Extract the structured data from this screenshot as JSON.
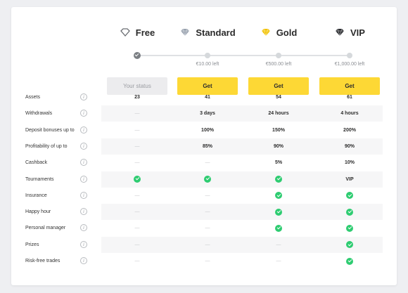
{
  "colors": {
    "accent": "#fdd835",
    "check": "#2ecc71",
    "band": "#f6f6f7"
  },
  "plans": [
    {
      "name": "Free",
      "icon": "heart-outline-icon",
      "progress_note": "",
      "action": "Your status",
      "active": true
    },
    {
      "name": "Standard",
      "icon": "silver-diamond-icon",
      "progress_note": "€10.00 left",
      "action": "Get",
      "active": false
    },
    {
      "name": "Gold",
      "icon": "gold-diamond-icon",
      "progress_note": "€500.00 left",
      "action": "Get",
      "active": false
    },
    {
      "name": "VIP",
      "icon": "black-diamond-icon",
      "progress_note": "€1,000.00 left",
      "action": "Get",
      "active": false
    }
  ],
  "rows": [
    {
      "label": "Assets",
      "values": [
        "23",
        "41",
        "54",
        "61"
      ]
    },
    {
      "label": "Withdrawals",
      "values": [
        "—",
        "3 days",
        "24 hours",
        "4 hours"
      ]
    },
    {
      "label": "Deposit bonuses up to",
      "values": [
        "—",
        "100%",
        "150%",
        "200%"
      ]
    },
    {
      "label": "Profitability of up to",
      "values": [
        "—",
        "85%",
        "90%",
        "90%"
      ]
    },
    {
      "label": "Cashback",
      "values": [
        "—",
        "—",
        "5%",
        "10%"
      ]
    },
    {
      "label": "Tournaments",
      "values": [
        "check",
        "check",
        "check",
        "VIP"
      ]
    },
    {
      "label": "Insurance",
      "values": [
        "—",
        "—",
        "check",
        "check"
      ]
    },
    {
      "label": "Happy hour",
      "values": [
        "—",
        "—",
        "check",
        "check"
      ]
    },
    {
      "label": "Personal manager",
      "values": [
        "—",
        "—",
        "check",
        "check"
      ]
    },
    {
      "label": "Prizes",
      "values": [
        "—",
        "—",
        "—",
        "check"
      ]
    },
    {
      "label": "Risk-free trades",
      "values": [
        "—",
        "—",
        "—",
        "check"
      ]
    }
  ],
  "info_glyph": "i"
}
